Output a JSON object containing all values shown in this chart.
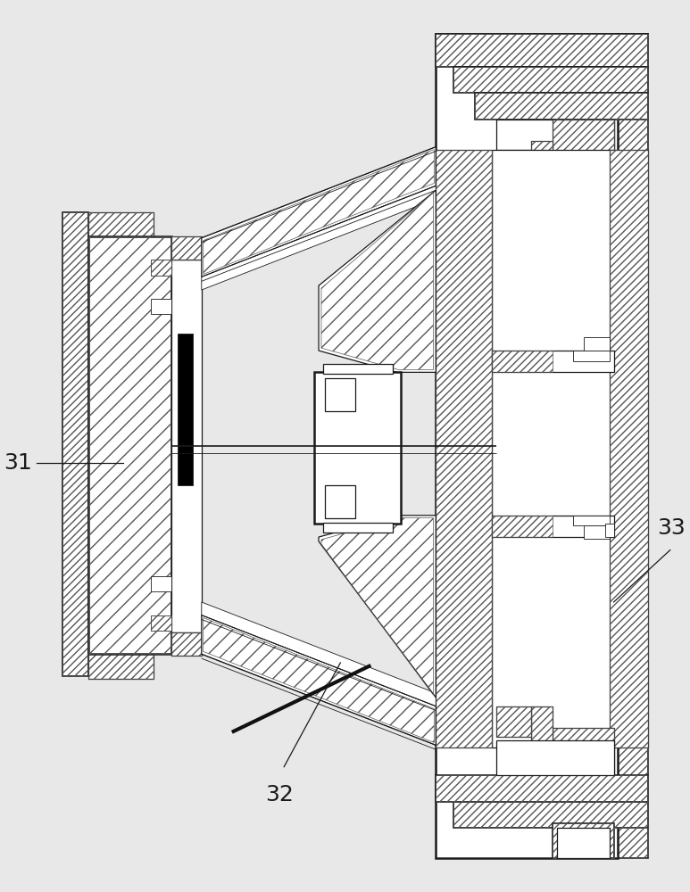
{
  "bg_color": "#e8e8e8",
  "line_color": "#1a1a1a",
  "hatch_color": "#555555",
  "label_31": "31",
  "label_32": "32",
  "label_33": "33",
  "label_fontsize": 18,
  "fig_width": 7.73,
  "fig_height": 10.0,
  "dpi": 100
}
